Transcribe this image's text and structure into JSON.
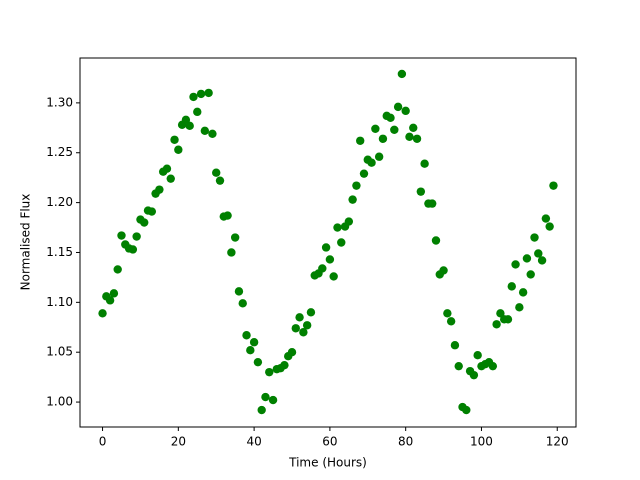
{
  "chart_data": {
    "type": "scatter",
    "xlabel": "Time (Hours)",
    "ylabel": "Normalised Flux",
    "color": "#008000",
    "x": [
      0,
      1,
      2,
      3,
      4,
      5,
      6,
      7,
      8,
      9,
      10,
      11,
      12,
      13,
      14,
      15,
      16,
      17,
      18,
      19,
      20,
      21,
      22,
      23,
      24,
      25,
      26,
      27,
      28,
      29,
      30,
      31,
      32,
      33,
      34,
      35,
      36,
      37,
      38,
      39,
      40,
      41,
      42,
      43,
      44,
      45,
      46,
      47,
      48,
      49,
      50,
      51,
      52,
      53,
      54,
      55,
      56,
      57,
      58,
      59,
      60,
      61,
      62,
      63,
      64,
      65,
      66,
      67,
      68,
      69,
      70,
      71,
      72,
      73,
      74,
      75,
      76,
      77,
      78,
      79,
      80,
      81,
      82,
      83,
      84,
      85,
      86,
      87,
      88,
      89,
      90,
      91,
      92,
      93,
      94,
      95,
      96,
      97,
      98,
      99,
      100,
      101,
      102,
      103,
      104,
      105,
      106,
      107,
      108,
      109,
      110,
      111,
      112,
      113,
      114,
      115,
      116,
      117,
      118,
      119
    ],
    "values": [
      1.089,
      1.106,
      1.102,
      1.109,
      1.133,
      1.167,
      1.158,
      1.154,
      1.153,
      1.166,
      1.183,
      1.18,
      1.192,
      1.191,
      1.209,
      1.213,
      1.231,
      1.234,
      1.224,
      1.263,
      1.253,
      1.278,
      1.283,
      1.277,
      1.306,
      1.291,
      1.309,
      1.272,
      1.31,
      1.269,
      1.23,
      1.222,
      1.186,
      1.187,
      1.15,
      1.165,
      1.111,
      1.099,
      1.067,
      1.052,
      1.06,
      1.04,
      0.992,
      1.005,
      1.03,
      1.002,
      1.033,
      1.034,
      1.037,
      1.046,
      1.05,
      1.074,
      1.085,
      1.07,
      1.077,
      1.09,
      1.127,
      1.129,
      1.134,
      1.155,
      1.143,
      1.126,
      1.175,
      1.16,
      1.176,
      1.181,
      1.203,
      1.217,
      1.262,
      1.229,
      1.243,
      1.24,
      1.274,
      1.246,
      1.264,
      1.287,
      1.285,
      1.273,
      1.296,
      1.329,
      1.292,
      1.266,
      1.275,
      1.264,
      1.211,
      1.239,
      1.199,
      1.199,
      1.162,
      1.128,
      1.132,
      1.089,
      1.081,
      1.057,
      1.036,
      0.995,
      0.992,
      1.031,
      1.027,
      1.047,
      1.036,
      1.038,
      1.04,
      1.036,
      1.078,
      1.089,
      1.083,
      1.083,
      1.116,
      1.138,
      1.095,
      1.11,
      1.144,
      1.128,
      1.165,
      1.149,
      1.142,
      1.184,
      1.176,
      1.217
    ],
    "xlim": [
      -5.95,
      124.95
    ],
    "ylim": [
      0.975,
      1.345
    ],
    "xticks": [
      0,
      20,
      40,
      60,
      80,
      100,
      120
    ],
    "yticks": [
      {
        "value": 1.0,
        "label": "1.00"
      },
      {
        "value": 1.05,
        "label": "1.05"
      },
      {
        "value": 1.1,
        "label": "1.10"
      },
      {
        "value": 1.15,
        "label": "1.15"
      },
      {
        "value": 1.2,
        "label": "1.20"
      },
      {
        "value": 1.25,
        "label": "1.25"
      },
      {
        "value": 1.3,
        "label": "1.30"
      }
    ]
  }
}
